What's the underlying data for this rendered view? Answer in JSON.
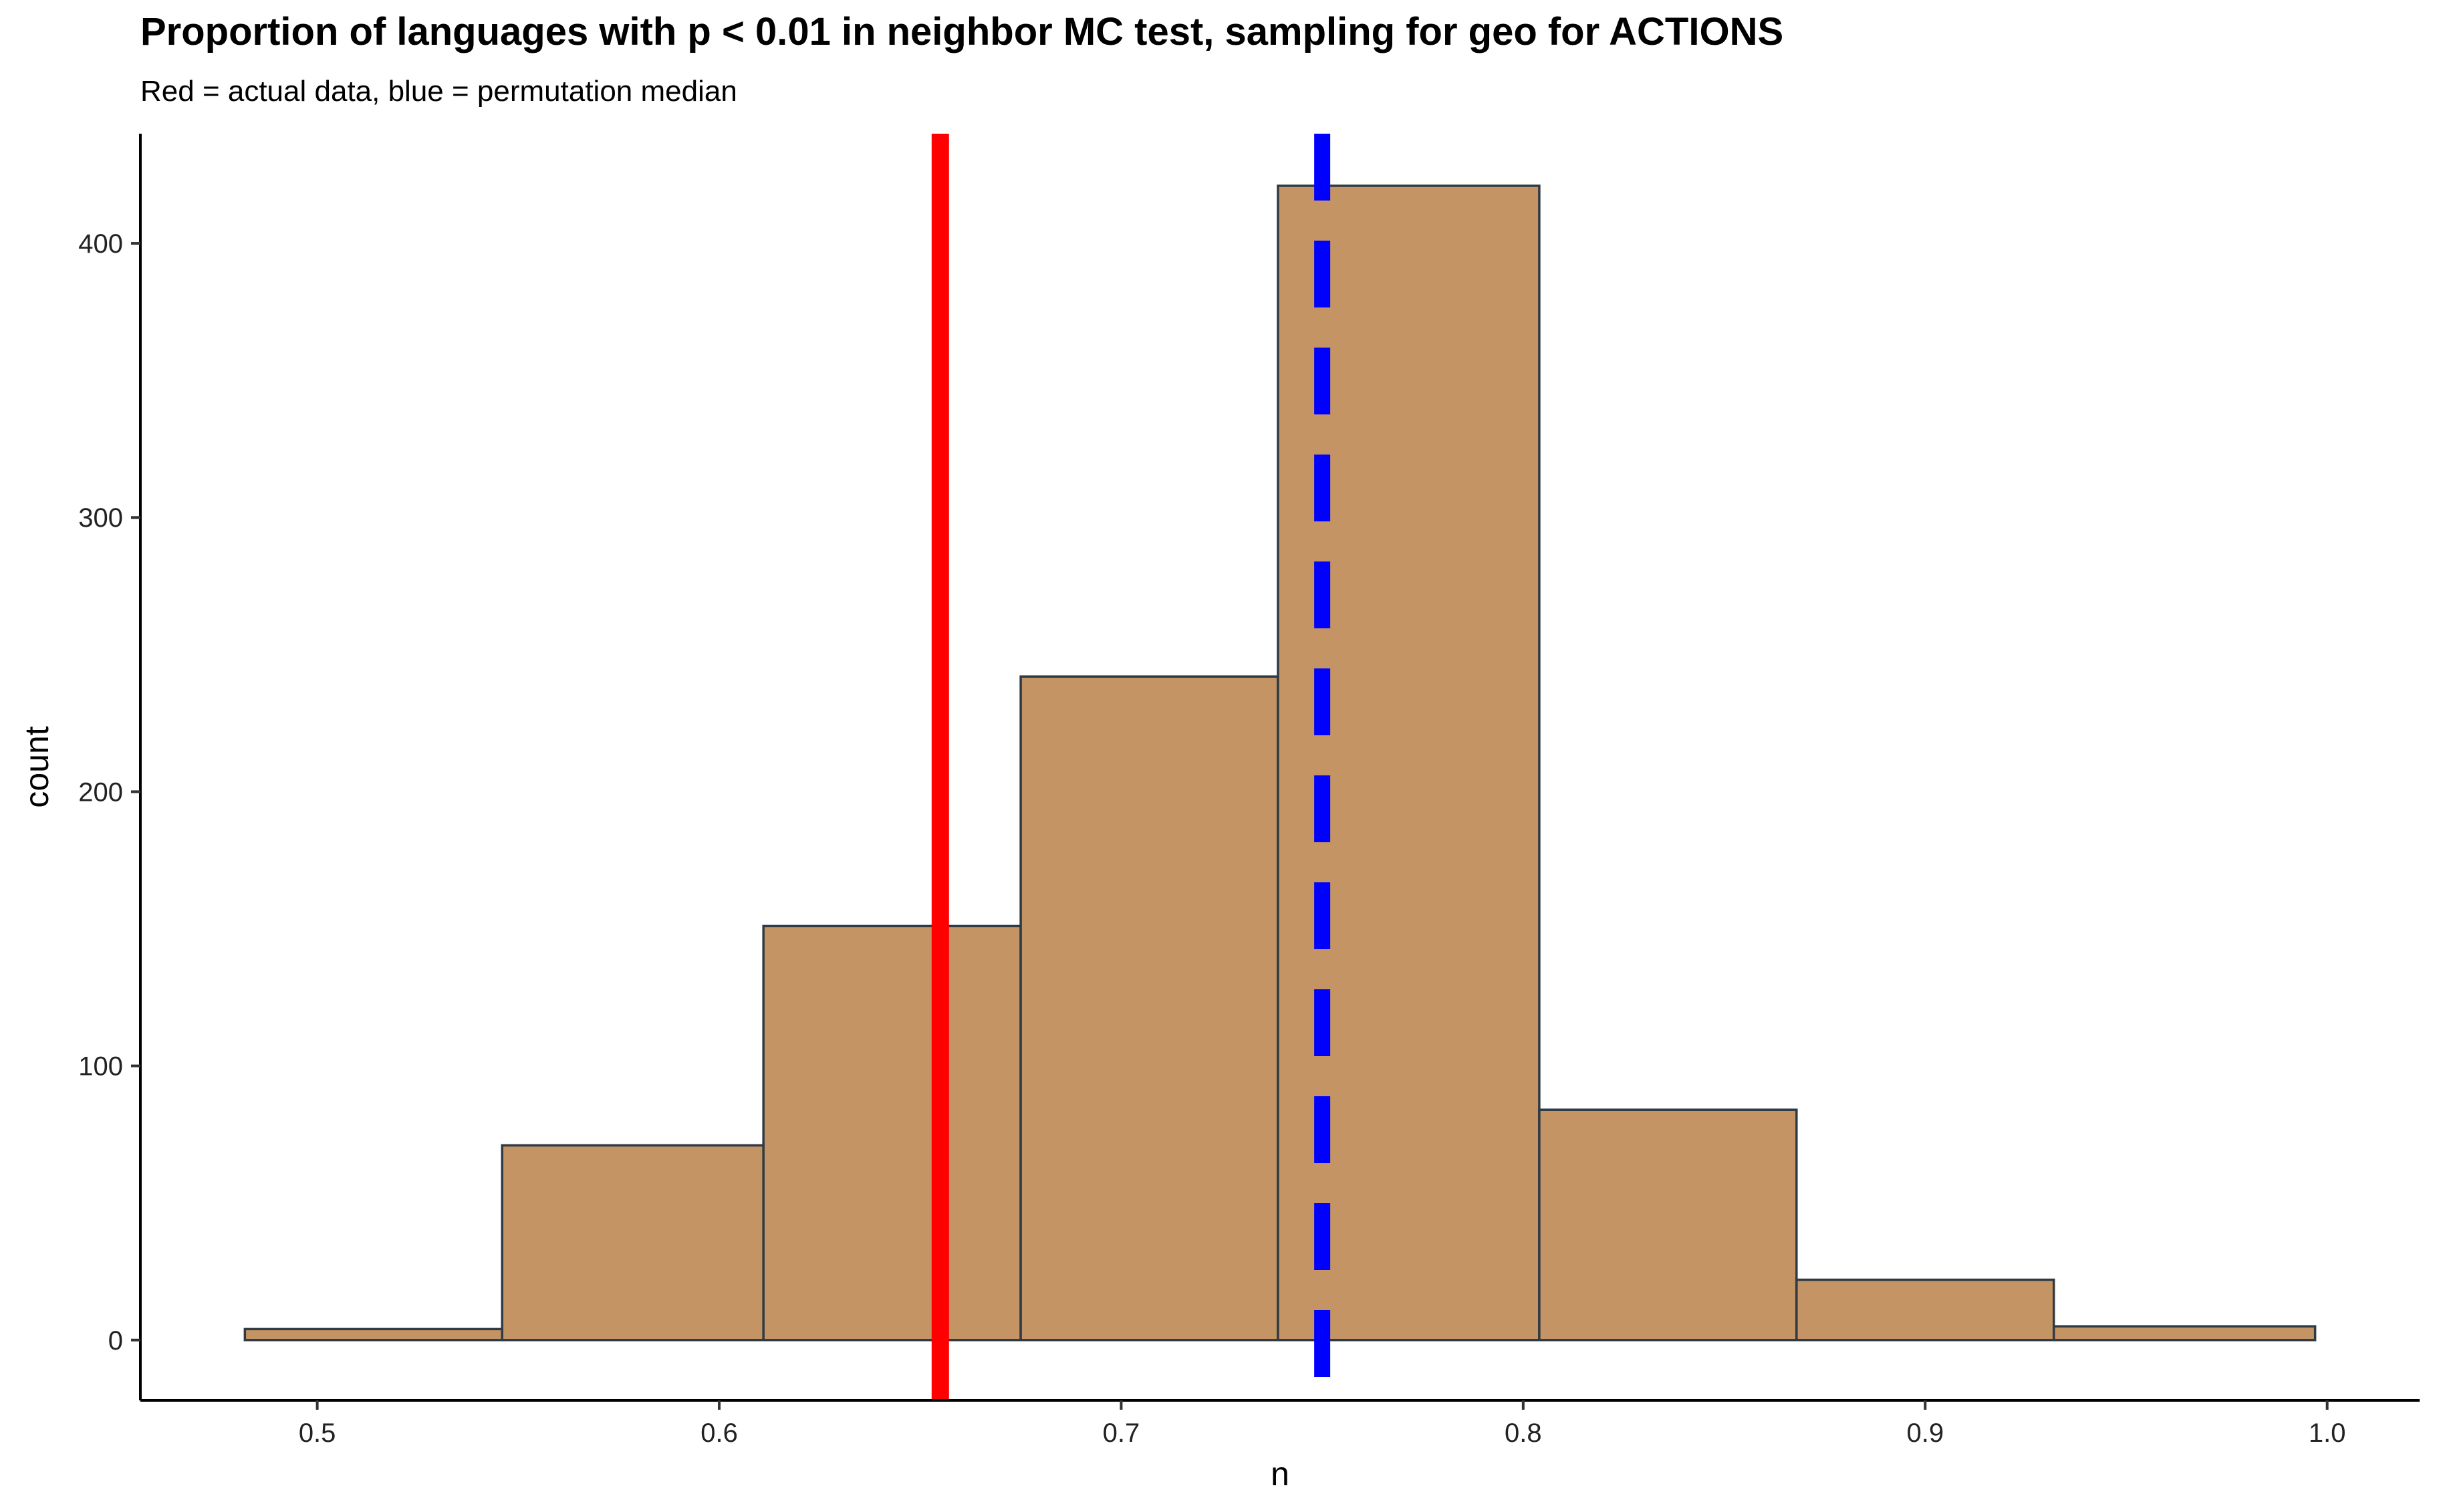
{
  "chart_data": {
    "type": "bar",
    "subtype": "histogram",
    "title": "Proportion of languages with p < 0.01 in neighbor MC test, sampling for geo for ACTIONS",
    "subtitle": "Red = actual data, blue = permutation median",
    "xlabel": "n",
    "ylabel": "count",
    "bins": [
      {
        "x0": 0.482,
        "x1": 0.546,
        "count": 4
      },
      {
        "x0": 0.546,
        "x1": 0.611,
        "count": 71
      },
      {
        "x0": 0.611,
        "x1": 0.675,
        "count": 151
      },
      {
        "x0": 0.675,
        "x1": 0.739,
        "count": 242
      },
      {
        "x0": 0.739,
        "x1": 0.804,
        "count": 421
      },
      {
        "x0": 0.804,
        "x1": 0.868,
        "count": 84
      },
      {
        "x0": 0.868,
        "x1": 0.932,
        "count": 22
      },
      {
        "x0": 0.932,
        "x1": 0.997,
        "count": 5
      }
    ],
    "xlim": [
      0.456,
      1.023
    ],
    "ylim": [
      -22,
      440
    ],
    "xticks": [
      0.5,
      0.6,
      0.7,
      0.8,
      0.9,
      1.0
    ],
    "xtick_labels": [
      "0.5",
      "0.6",
      "0.7",
      "0.8",
      "0.9",
      "1.0"
    ],
    "yticks": [
      0,
      100,
      200,
      300,
      400
    ],
    "ytick_labels": [
      "0",
      "100",
      "200",
      "300",
      "400"
    ],
    "vlines": [
      {
        "x": 0.655,
        "color": "#ff0000",
        "style": "solid",
        "meaning": "actual data"
      },
      {
        "x": 0.75,
        "color": "#0000ff",
        "style": "dashed",
        "meaning": "permutation median"
      }
    ],
    "bar_fill": "#c49464",
    "bar_stroke": "#2f3a44",
    "grid": false,
    "legend": "none"
  }
}
